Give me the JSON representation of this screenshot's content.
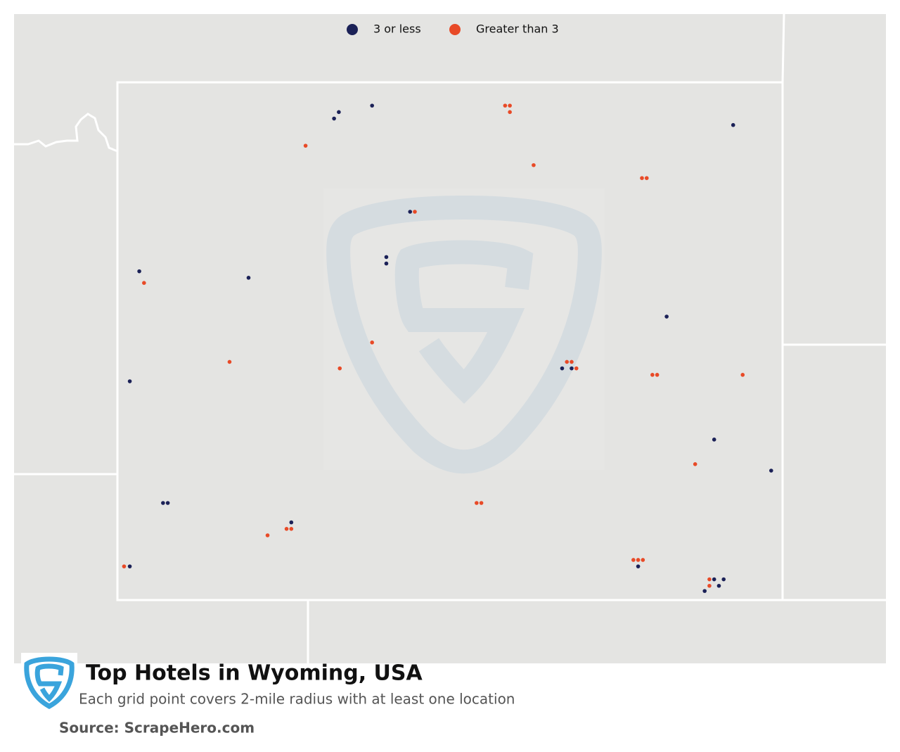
{
  "map": {
    "title": "Top Hotels in Wyoming, USA",
    "subtitle": "Each grid point covers 2-mile radius with at least one location",
    "source": "Source: ScrapeHero.com",
    "series": [
      {
        "name": "3 or less",
        "color": "#1b2157",
        "points": [
          [
            -108.37,
            44.82
          ],
          [
            -108.72,
            44.77
          ],
          [
            -108.77,
            44.72
          ],
          [
            -104.57,
            44.67
          ],
          [
            -107.97,
            44.0
          ],
          [
            -108.22,
            43.65
          ],
          [
            -108.22,
            43.6
          ],
          [
            -110.82,
            43.54
          ],
          [
            -109.67,
            43.49
          ],
          [
            -105.27,
            43.19
          ],
          [
            -110.92,
            42.69
          ],
          [
            -106.37,
            42.79
          ],
          [
            -106.27,
            42.79
          ],
          [
            -104.77,
            42.24
          ],
          [
            -104.17,
            42.0
          ],
          [
            -110.57,
            41.75
          ],
          [
            -110.52,
            41.75
          ],
          [
            -109.22,
            41.6
          ],
          [
            -110.92,
            41.26
          ],
          [
            -105.57,
            41.26
          ],
          [
            -104.77,
            41.16
          ],
          [
            -104.67,
            41.16
          ],
          [
            -104.72,
            41.11
          ],
          [
            -104.87,
            41.07
          ]
        ]
      },
      {
        "name": "Greater than 3",
        "color": "#e84a27",
        "points": [
          [
            -106.97,
            44.82
          ],
          [
            -106.92,
            44.82
          ],
          [
            -106.92,
            44.77
          ],
          [
            -109.07,
            44.51
          ],
          [
            -106.67,
            44.36
          ],
          [
            -105.53,
            44.26
          ],
          [
            -105.48,
            44.26
          ],
          [
            -107.92,
            44.0
          ],
          [
            -110.77,
            43.45
          ],
          [
            -108.37,
            42.99
          ],
          [
            -109.87,
            42.84
          ],
          [
            -108.71,
            42.79
          ],
          [
            -106.32,
            42.84
          ],
          [
            -106.27,
            42.84
          ],
          [
            -106.22,
            42.79
          ],
          [
            -105.42,
            42.74
          ],
          [
            -105.37,
            42.74
          ],
          [
            -104.47,
            42.74
          ],
          [
            -104.97,
            42.05
          ],
          [
            -107.27,
            41.75
          ],
          [
            -107.22,
            41.75
          ],
          [
            -109.27,
            41.55
          ],
          [
            -109.22,
            41.55
          ],
          [
            -109.47,
            41.5
          ],
          [
            -110.98,
            41.26
          ],
          [
            -105.62,
            41.31
          ],
          [
            -105.57,
            41.31
          ],
          [
            -105.52,
            41.31
          ],
          [
            -104.82,
            41.16
          ],
          [
            -104.82,
            41.11
          ]
        ]
      }
    ]
  }
}
